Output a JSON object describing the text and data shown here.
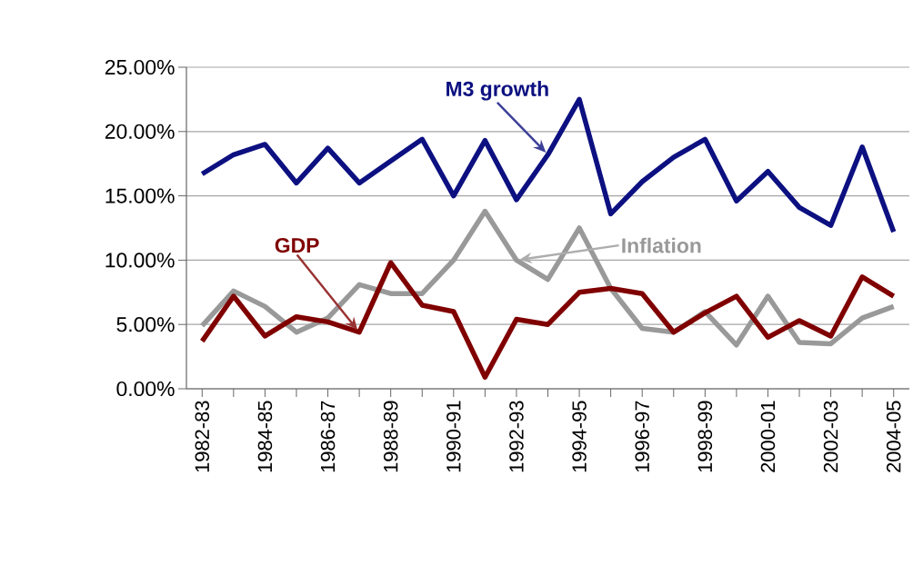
{
  "chart_data": {
    "type": "line",
    "categories": [
      "1982-83",
      null,
      "1984-85",
      null,
      "1986-87",
      null,
      "1988-89",
      null,
      "1990-91",
      null,
      "1992-93",
      null,
      "1994-95",
      null,
      "1996-97",
      null,
      "1998-99",
      null,
      "2000-01",
      null,
      "2002-03",
      null,
      "2004-05"
    ],
    "series": [
      {
        "name": "M3 growth",
        "color": "#0c1080",
        "values": [
          16.7,
          18.2,
          19.0,
          16.0,
          18.7,
          16.0,
          17.7,
          19.4,
          15.0,
          19.3,
          14.7,
          18.2,
          22.5,
          13.6,
          16.1,
          18.0,
          19.4,
          14.6,
          16.9,
          14.1,
          12.7,
          18.8,
          12.2
        ]
      },
      {
        "name": "Inflation",
        "color": "#999999",
        "values": [
          4.9,
          7.6,
          6.4,
          4.4,
          5.5,
          8.1,
          7.4,
          7.4,
          10.0,
          13.8,
          10.0,
          8.5,
          12.5,
          7.8,
          4.7,
          4.4,
          6.0,
          3.4,
          7.2,
          3.6,
          3.5,
          5.5,
          6.4
        ]
      },
      {
        "name": "GDP",
        "color": "#800000",
        "values": [
          3.7,
          7.2,
          4.1,
          5.6,
          5.2,
          4.4,
          9.8,
          6.5,
          6.0,
          0.9,
          5.4,
          5.0,
          7.5,
          7.8,
          7.4,
          4.4,
          5.9,
          7.2,
          4.0,
          5.3,
          4.1,
          8.7,
          7.2
        ]
      }
    ],
    "ylim": [
      0,
      25
    ],
    "yticks": [
      {
        "value": 0,
        "label": "0.00%"
      },
      {
        "value": 5,
        "label": "5.00%"
      },
      {
        "value": 10,
        "label": "10.00%"
      },
      {
        "value": 15,
        "label": "15.00%"
      },
      {
        "value": 20,
        "label": "20.00%"
      },
      {
        "value": 25,
        "label": "25.00%"
      }
    ],
    "grid": "y",
    "legend": false,
    "marker": "none",
    "line_style": "solid"
  }
}
